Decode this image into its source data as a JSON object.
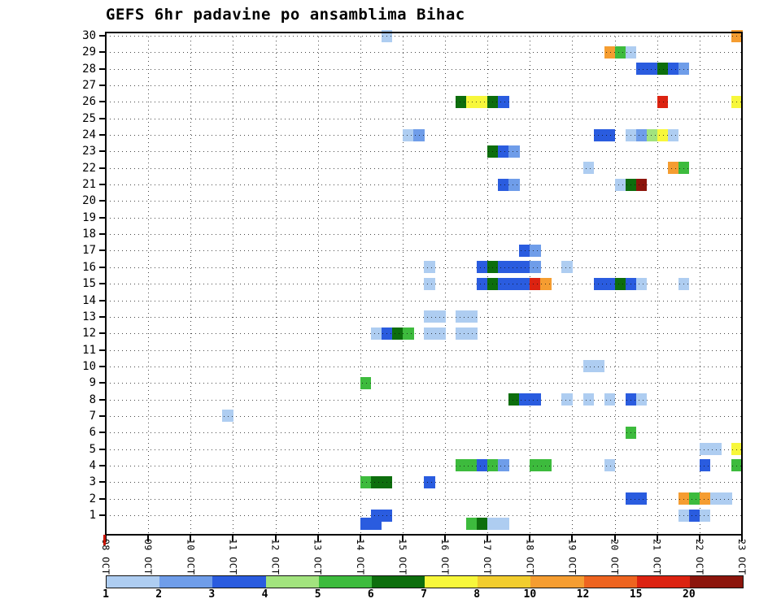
{
  "title": "GEFS 6hr padavine po ansamblima Bihac",
  "chart_data": {
    "type": "heatmap",
    "title": "GEFS 6hr padavine po ansamblima Bihac",
    "x_axis": {
      "tick_labels": [
        "08 OCT",
        "09 OCT",
        "10 OCT",
        "11 OCT",
        "12 OCT",
        "13 OCT",
        "14 OCT",
        "15 OCT",
        "16 OCT",
        "17 OCT",
        "18 OCT",
        "19 OCT",
        "20 OCT",
        "21 OCT",
        "22 OCT",
        "23 OCT"
      ],
      "slots_per_day": 4,
      "n_slots": 60
    },
    "y_axis": {
      "tick_labels": [
        "30",
        "29",
        "28",
        "27",
        "26",
        "25",
        "24",
        "23",
        "22",
        "21",
        "20",
        "19",
        "18",
        "17",
        "16",
        "15",
        "14",
        "13",
        "12",
        "11",
        "10",
        "9",
        "8",
        "7",
        "6",
        "5",
        "4",
        "3",
        "2",
        "1"
      ]
    },
    "legend": {
      "tick_labels": [
        "1",
        "2",
        "3",
        "4",
        "5",
        "6",
        "7",
        "8",
        "10",
        "12",
        "15",
        "20"
      ],
      "colors": [
        "#aecdf1",
        "#6f9de9",
        "#2a5cdf",
        "#a2e37e",
        "#3dbb3d",
        "#0d6e0d",
        "#f7f73b",
        "#f2cd2e",
        "#f59d31",
        "#ee6420",
        "#dc2311",
        "#8c150c"
      ]
    },
    "cells_format": [
      "member",
      "time_slot_6hr",
      "color_index"
    ],
    "cells": [
      [
        30,
        26,
        0
      ],
      [
        30,
        59,
        8
      ],
      [
        29,
        47,
        8
      ],
      [
        29,
        48,
        4
      ],
      [
        29,
        49,
        0
      ],
      [
        28,
        50,
        2
      ],
      [
        28,
        51,
        2
      ],
      [
        28,
        52,
        5
      ],
      [
        28,
        53,
        2
      ],
      [
        28,
        54,
        1
      ],
      [
        26,
        33,
        5
      ],
      [
        26,
        34,
        6
      ],
      [
        26,
        35,
        6
      ],
      [
        26,
        36,
        5
      ],
      [
        26,
        37,
        2
      ],
      [
        26,
        52,
        10
      ],
      [
        26,
        59,
        6
      ],
      [
        24,
        28,
        0
      ],
      [
        24,
        29,
        1
      ],
      [
        24,
        46,
        2
      ],
      [
        24,
        47,
        2
      ],
      [
        24,
        49,
        0
      ],
      [
        24,
        50,
        1
      ],
      [
        24,
        51,
        3
      ],
      [
        24,
        52,
        6
      ],
      [
        24,
        53,
        0
      ],
      [
        23,
        36,
        5
      ],
      [
        23,
        37,
        2
      ],
      [
        23,
        38,
        1
      ],
      [
        22,
        45,
        0
      ],
      [
        22,
        53,
        8
      ],
      [
        22,
        54,
        4
      ],
      [
        21,
        37,
        2
      ],
      [
        21,
        38,
        1
      ],
      [
        21,
        48,
        0
      ],
      [
        21,
        49,
        5
      ],
      [
        21,
        50,
        11
      ],
      [
        17,
        39,
        2
      ],
      [
        17,
        40,
        1
      ],
      [
        16,
        30,
        0
      ],
      [
        16,
        35,
        2
      ],
      [
        16,
        36,
        5
      ],
      [
        16,
        37,
        2
      ],
      [
        16,
        38,
        2
      ],
      [
        16,
        39,
        2
      ],
      [
        16,
        40,
        1
      ],
      [
        16,
        43,
        0
      ],
      [
        15,
        30,
        0
      ],
      [
        15,
        35,
        2
      ],
      [
        15,
        36,
        5
      ],
      [
        15,
        37,
        2
      ],
      [
        15,
        38,
        2
      ],
      [
        15,
        39,
        2
      ],
      [
        15,
        40,
        10
      ],
      [
        15,
        41,
        8
      ],
      [
        15,
        46,
        2
      ],
      [
        15,
        47,
        2
      ],
      [
        15,
        48,
        5
      ],
      [
        15,
        49,
        2
      ],
      [
        15,
        50,
        0
      ],
      [
        15,
        54,
        0
      ],
      [
        13,
        30,
        0
      ],
      [
        13,
        31,
        0
      ],
      [
        13,
        33,
        0
      ],
      [
        13,
        34,
        0
      ],
      [
        12,
        25,
        0
      ],
      [
        12,
        26,
        2
      ],
      [
        12,
        27,
        5
      ],
      [
        12,
        28,
        4
      ],
      [
        12,
        30,
        0
      ],
      [
        12,
        31,
        0
      ],
      [
        12,
        33,
        0
      ],
      [
        12,
        34,
        0
      ],
      [
        10,
        45,
        0
      ],
      [
        10,
        46,
        0
      ],
      [
        9,
        24,
        4
      ],
      [
        8,
        38,
        5
      ],
      [
        8,
        39,
        2
      ],
      [
        8,
        40,
        2
      ],
      [
        8,
        43,
        0
      ],
      [
        8,
        45,
        0
      ],
      [
        8,
        47,
        0
      ],
      [
        8,
        49,
        2
      ],
      [
        8,
        50,
        0
      ],
      [
        7,
        11,
        0
      ],
      [
        6,
        49,
        4
      ],
      [
        5,
        56,
        0
      ],
      [
        5,
        57,
        0
      ],
      [
        5,
        59,
        6
      ],
      [
        4,
        33,
        4
      ],
      [
        4,
        34,
        4
      ],
      [
        4,
        35,
        2
      ],
      [
        4,
        36,
        4
      ],
      [
        4,
        37,
        1
      ],
      [
        4,
        40,
        4
      ],
      [
        4,
        41,
        4
      ],
      [
        4,
        47,
        0
      ],
      [
        4,
        56,
        2
      ],
      [
        4,
        59,
        4
      ],
      [
        3,
        24,
        4
      ],
      [
        3,
        25,
        5
      ],
      [
        3,
        26,
        5
      ],
      [
        3,
        30,
        2
      ],
      [
        2,
        49,
        2
      ],
      [
        2,
        50,
        2
      ],
      [
        2,
        54,
        8
      ],
      [
        2,
        55,
        4
      ],
      [
        2,
        56,
        8
      ],
      [
        2,
        57,
        0
      ],
      [
        2,
        58,
        0
      ],
      [
        1,
        25,
        2
      ],
      [
        1,
        26,
        2
      ],
      [
        1,
        54,
        0
      ],
      [
        1,
        55,
        2
      ],
      [
        1,
        56,
        0
      ],
      [
        0.5,
        24,
        2
      ],
      [
        0.5,
        25,
        2
      ],
      [
        0.5,
        34,
        4
      ],
      [
        0.5,
        35,
        5
      ],
      [
        0.5,
        36,
        0
      ],
      [
        0.5,
        37,
        0
      ]
    ]
  }
}
